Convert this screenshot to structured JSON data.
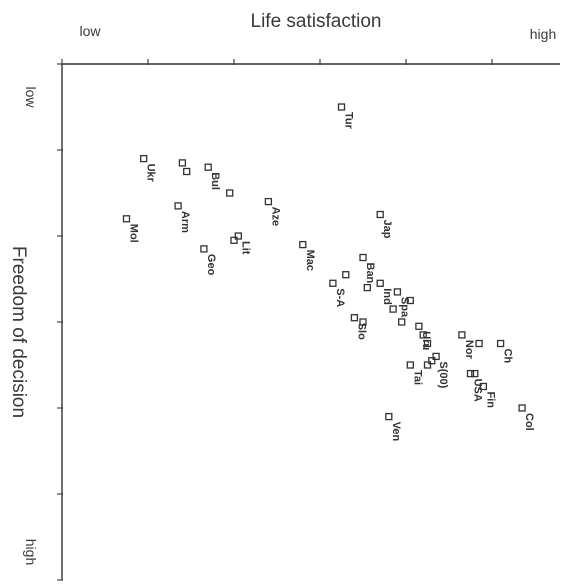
{
  "chart_data": {
    "type": "scatter",
    "title": "Life satisfaction",
    "xlabel": "Life satisfaction",
    "ylabel": "Freedom of decision",
    "x_low_label": "low",
    "x_high_label": "high",
    "y_low_label": "low",
    "y_high_label": "high",
    "xlim": [
      0,
      12
    ],
    "ylim": [
      0,
      12
    ],
    "y_inverted": true,
    "grid": false,
    "points": [
      {
        "x": 6.5,
        "y": 1.0,
        "label": "Tur"
      },
      {
        "x": 1.9,
        "y": 2.2,
        "label": "Ukr"
      },
      {
        "x": 2.8,
        "y": 2.3,
        "label": ""
      },
      {
        "x": 2.9,
        "y": 2.5,
        "label": ""
      },
      {
        "x": 3.4,
        "y": 2.4,
        "label": "Bul"
      },
      {
        "x": 3.9,
        "y": 3.0,
        "label": ""
      },
      {
        "x": 4.8,
        "y": 3.2,
        "label": "Aze"
      },
      {
        "x": 2.7,
        "y": 3.3,
        "label": "Arm"
      },
      {
        "x": 1.5,
        "y": 3.6,
        "label": "Mol"
      },
      {
        "x": 7.4,
        "y": 3.5,
        "label": "Jap"
      },
      {
        "x": 4.1,
        "y": 4.0,
        "label": "Lit"
      },
      {
        "x": 4.0,
        "y": 4.1,
        "label": ""
      },
      {
        "x": 3.3,
        "y": 4.3,
        "label": "Geo"
      },
      {
        "x": 5.6,
        "y": 4.2,
        "label": "Mac"
      },
      {
        "x": 7.0,
        "y": 4.5,
        "label": "Ban"
      },
      {
        "x": 6.6,
        "y": 4.9,
        "label": ""
      },
      {
        "x": 6.3,
        "y": 5.1,
        "label": "S-A"
      },
      {
        "x": 7.4,
        "y": 5.1,
        "label": "Ind"
      },
      {
        "x": 7.1,
        "y": 5.2,
        "label": ""
      },
      {
        "x": 7.8,
        "y": 5.3,
        "label": "Spa"
      },
      {
        "x": 8.1,
        "y": 5.5,
        "label": ""
      },
      {
        "x": 7.7,
        "y": 5.7,
        "label": ""
      },
      {
        "x": 6.8,
        "y": 5.9,
        "label": "Slo"
      },
      {
        "x": 7.0,
        "y": 6.0,
        "label": ""
      },
      {
        "x": 7.9,
        "y": 6.0,
        "label": ""
      },
      {
        "x": 8.3,
        "y": 6.1,
        "label": "Uru"
      },
      {
        "x": 8.4,
        "y": 6.3,
        "label": ""
      },
      {
        "x": 8.5,
        "y": 6.5,
        "label": ""
      },
      {
        "x": 9.3,
        "y": 6.3,
        "label": "Nor"
      },
      {
        "x": 9.7,
        "y": 6.5,
        "label": ""
      },
      {
        "x": 10.2,
        "y": 6.5,
        "label": "Ch"
      },
      {
        "x": 8.7,
        "y": 6.8,
        "label": "S(00)"
      },
      {
        "x": 8.6,
        "y": 6.9,
        "label": ""
      },
      {
        "x": 8.5,
        "y": 7.0,
        "label": ""
      },
      {
        "x": 8.1,
        "y": 7.0,
        "label": "Tai"
      },
      {
        "x": 9.5,
        "y": 7.2,
        "label": "USA"
      },
      {
        "x": 9.6,
        "y": 7.2,
        "label": ""
      },
      {
        "x": 9.8,
        "y": 7.5,
        "label": "Fin"
      },
      {
        "x": 10.7,
        "y": 8.0,
        "label": "Col"
      },
      {
        "x": 7.6,
        "y": 8.2,
        "label": "Ven"
      }
    ]
  }
}
